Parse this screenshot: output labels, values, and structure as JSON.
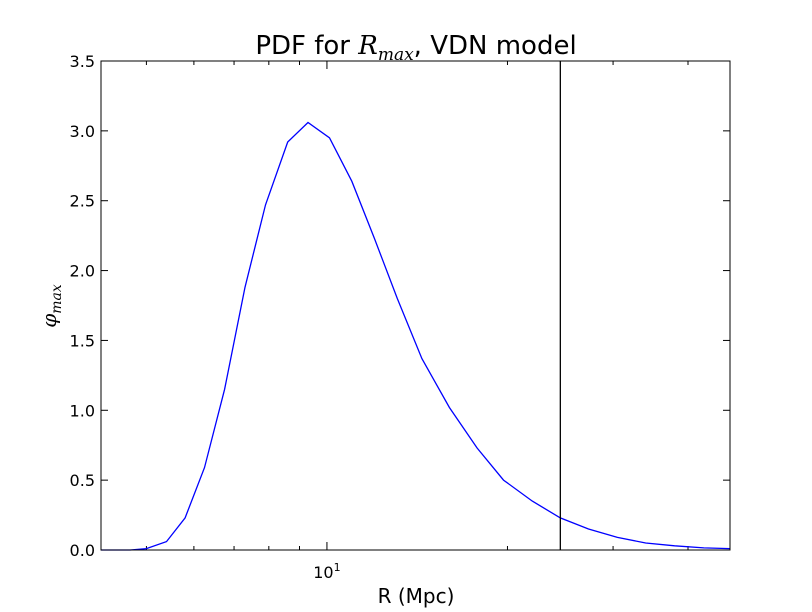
{
  "chart_data": {
    "type": "line",
    "title_prefix": "PDF for ",
    "title_math_base": "R",
    "title_math_sub": "max",
    "title_suffix": ", VDN model",
    "xlabel": "R (Mpc)",
    "ylabel_base": "φ",
    "ylabel_sub": "max",
    "xscale": "log",
    "xlim": [
      4.2,
      47
    ],
    "ylim": [
      0.0,
      3.5
    ],
    "yticks": [
      "0.0",
      "0.5",
      "1.0",
      "1.5",
      "2.0",
      "2.5",
      "3.0",
      "3.5"
    ],
    "xtick_major_base": "10",
    "xtick_major_exp": "1",
    "xtick_major_value": 10,
    "vline_x": 24.5,
    "series": [
      {
        "name": "PDF",
        "color": "#0000ff",
        "x": [
          4.2,
          4.7,
          5.0,
          5.4,
          5.8,
          6.25,
          6.75,
          7.3,
          7.9,
          8.6,
          9.3,
          10.1,
          11.0,
          12.0,
          13.1,
          14.4,
          16.0,
          17.8,
          19.7,
          22.0,
          24.5,
          27.3,
          30.5,
          34.0,
          38.0,
          42.5,
          47.0
        ],
        "y": [
          0.0,
          0.0,
          0.01,
          0.06,
          0.23,
          0.59,
          1.15,
          1.88,
          2.47,
          2.92,
          3.06,
          2.95,
          2.64,
          2.23,
          1.8,
          1.37,
          1.02,
          0.73,
          0.5,
          0.35,
          0.23,
          0.15,
          0.09,
          0.05,
          0.03,
          0.015,
          0.01
        ]
      }
    ],
    "vline_color": "#000000"
  }
}
